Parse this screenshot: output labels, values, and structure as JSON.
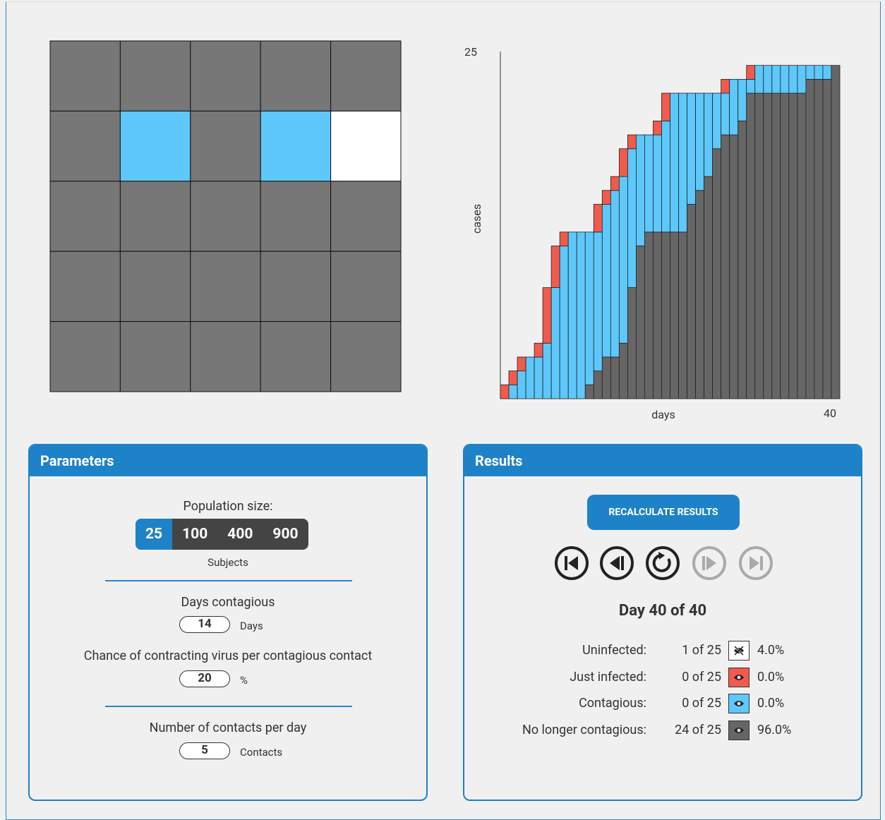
{
  "population_grid": {
    "cells": [
      [
        "#777777",
        "#777777",
        "#777777",
        "#777777",
        "#777777"
      ],
      [
        "#777777",
        "#5ec8fb",
        "#777777",
        "#5ec8fb",
        "#ffffff"
      ],
      [
        "#777777",
        "#777777",
        "#777777",
        "#777777",
        "#777777"
      ],
      [
        "#777777",
        "#777777",
        "#777777",
        "#777777",
        "#777777"
      ],
      [
        "#777777",
        "#777777",
        "#777777",
        "#777777",
        "#777777"
      ]
    ]
  },
  "chart_data": {
    "type": "stacked-bar",
    "y_label": "cases",
    "x_label": "days",
    "ylim": [
      0,
      25
    ],
    "yticks": [
      25
    ],
    "xlim": [
      0,
      40
    ],
    "xticks": [
      40
    ],
    "series": [
      {
        "name": "No longer contagious",
        "color": "#666666",
        "values": [
          0,
          0,
          0,
          0,
          0,
          0,
          0,
          0,
          0,
          0,
          1,
          2,
          3,
          3,
          4,
          8,
          11,
          12,
          12,
          12,
          12,
          12,
          14,
          15,
          16,
          18,
          19,
          19,
          20,
          22,
          22,
          22,
          22,
          22,
          22,
          22,
          23,
          23,
          23,
          24
        ]
      },
      {
        "name": "Contagious",
        "color": "#5ec8fb",
        "values": [
          0,
          1,
          2,
          3,
          3,
          4,
          8,
          11,
          12,
          12,
          11,
          10,
          11,
          12,
          12,
          10,
          8,
          7,
          7,
          8,
          10,
          10,
          8,
          7,
          6,
          4,
          3,
          4,
          3,
          1,
          2,
          2,
          2,
          2,
          2,
          2,
          1,
          1,
          1,
          0
        ]
      },
      {
        "name": "Just infected",
        "color": "#f25a4c",
        "values": [
          1,
          1,
          1,
          0,
          1,
          4,
          3,
          1,
          0,
          0,
          0,
          2,
          1,
          1,
          2,
          1,
          0,
          0,
          1,
          2,
          0,
          0,
          0,
          0,
          0,
          0,
          1,
          0,
          0,
          1,
          0,
          0,
          0,
          0,
          0,
          0,
          0,
          0,
          0,
          0
        ]
      }
    ]
  },
  "parameters": {
    "title": "Parameters",
    "population_label": "Population size:",
    "population_options": [
      25,
      100,
      400,
      900
    ],
    "population_selected": 0,
    "population_unit": "Subjects",
    "days_label": "Days contagious",
    "days_value": 14,
    "days_unit": "Days",
    "chance_label": "Chance of contracting virus per contagious contact",
    "chance_value": 20,
    "chance_unit": "%",
    "contacts_label": "Number of contacts per day",
    "contacts_value": 5,
    "contacts_unit": "Contacts"
  },
  "results": {
    "title": "Results",
    "button": "RECALCULATE RESULTS",
    "day_text": "Day 40 of 40",
    "rows": [
      {
        "label": "Uninfected:",
        "count": "1 of 25",
        "percent": "4.0%",
        "color": "#ffffff"
      },
      {
        "label": "Just infected:",
        "count": "0 of 25",
        "percent": "0.0%",
        "color": "#f25a4c"
      },
      {
        "label": "Contagious:",
        "count": "0 of 25",
        "percent": "0.0%",
        "color": "#5ec8fb"
      },
      {
        "label": "No longer contagious:",
        "count": "24 of 25",
        "percent": "96.0%",
        "color": "#666666"
      }
    ]
  }
}
